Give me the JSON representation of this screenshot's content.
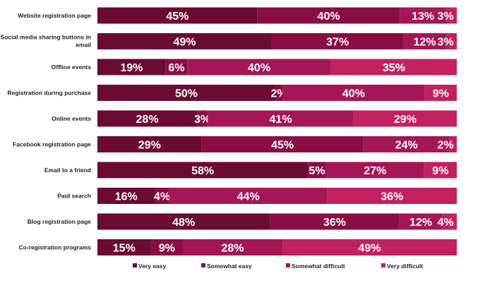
{
  "chart_data": {
    "type": "bar",
    "orientation": "horizontal",
    "stacked": true,
    "categories": [
      "Website registration page",
      "Social media sharing buttons in email",
      "Offline events",
      "Registration during purchase",
      "Online events",
      "Facebook registration page",
      "Email to a friend",
      "Paid search",
      "Blog registration page",
      "Co-registration programs"
    ],
    "series": [
      {
        "name": "Very easy",
        "color": "#6b0a33",
        "values": [
          45,
          49,
          19,
          50,
          28,
          29,
          58,
          16,
          48,
          15
        ]
      },
      {
        "name": "Somewhat easy",
        "color": "#890d44",
        "values": [
          40,
          37,
          6,
          2,
          3,
          45,
          5,
          4,
          36,
          9
        ]
      },
      {
        "name": "Somewhat difficult",
        "color": "#a41656",
        "values": [
          13,
          12,
          40,
          40,
          41,
          24,
          27,
          44,
          12,
          28
        ]
      },
      {
        "name": "Very difficult",
        "color": "#c3205f",
        "values": [
          3,
          3,
          35,
          9,
          29,
          2,
          9,
          36,
          4,
          49
        ]
      }
    ],
    "value_labels": [
      [
        "45%",
        "40%",
        "13%",
        "3%"
      ],
      [
        "49%",
        "37%",
        "12%",
        "3%"
      ],
      [
        "19%",
        "6%",
        "40%",
        "35%"
      ],
      [
        "50%",
        "2%",
        "40%",
        "9%"
      ],
      [
        "28%",
        "3%",
        "41%",
        "29%"
      ],
      [
        "29%",
        "45%",
        "24%",
        "2%"
      ],
      [
        "58%",
        "5%",
        "27%",
        "9%"
      ],
      [
        "16%",
        "4%",
        "44%",
        "36%"
      ],
      [
        "48%",
        "36%",
        "12%",
        "4%"
      ],
      [
        "15%",
        "9%",
        "28%",
        "49%"
      ]
    ],
    "legend_position": "bottom",
    "grid": false
  }
}
